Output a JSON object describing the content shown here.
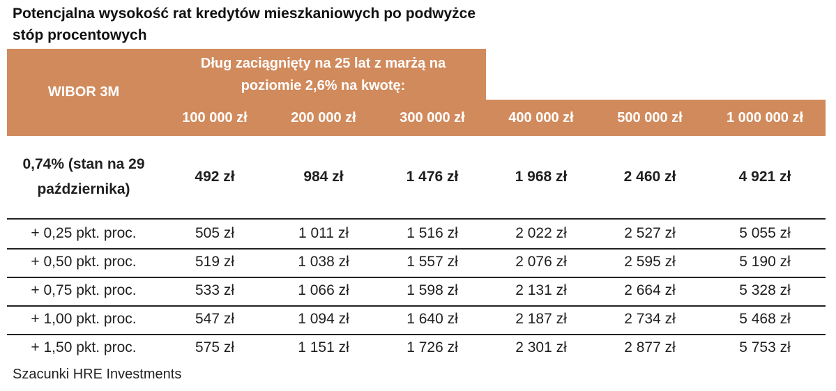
{
  "title": "Potencjalna wysokość rat kredytów mieszkaniowych po podwyżce stóp procentowych",
  "source": "Szacunki HRE Investments",
  "colors": {
    "header_bg": "#d18a5c",
    "header_text": "#ffffff"
  },
  "chart_data": {
    "type": "table",
    "title": "Potencjalna wysokość rat kredytów mieszkaniowych po podwyżce stóp procentowych",
    "row_header_label": "WIBOR 3M",
    "column_group_label": "Dług zaciągnięty na 25 lat z marżą na poziomie 2,6% na kwotę:",
    "columns": [
      "100 000 zł",
      "200 000 zł",
      "300 000 zł",
      "400 000 zł",
      "500 000 zł",
      "1 000 000 zł"
    ],
    "rows": [
      {
        "label": "0,74% (stan na 29 października)",
        "values": [
          "492 zł",
          "984 zł",
          "1 476 zł",
          "1 968 zł",
          "2 460 zł",
          "4 921 zł"
        ]
      },
      {
        "label": "+ 0,25 pkt. proc.",
        "values": [
          "505 zł",
          "1 011 zł",
          "1 516 zł",
          "2 022 zł",
          "2 527 zł",
          "5 055 zł"
        ]
      },
      {
        "label": "+ 0,50 pkt. proc.",
        "values": [
          "519 zł",
          "1 038 zł",
          "1 557 zł",
          "2 076 zł",
          "2 595 zł",
          "5 190 zł"
        ]
      },
      {
        "label": "+ 0,75 pkt. proc.",
        "values": [
          "533 zł",
          "1 066 zł",
          "1 598 zł",
          "2 131 zł",
          "2 664 zł",
          "5 328 zł"
        ]
      },
      {
        "label": "+ 1,00 pkt. proc.",
        "values": [
          "547 zł",
          "1 094 zł",
          "1 640 zł",
          "2 187 zł",
          "2 734 zł",
          "5 468 zł"
        ]
      },
      {
        "label": "+ 1,50 pkt. proc.",
        "values": [
          "575 zł",
          "1 151 zł",
          "1 726 zł",
          "2 301 zł",
          "2 877 zł",
          "5 753 zł"
        ]
      }
    ]
  }
}
